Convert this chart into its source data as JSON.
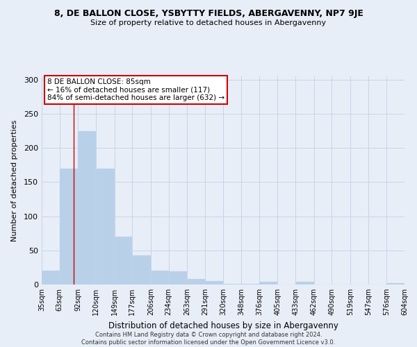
{
  "title": "8, DE BALLON CLOSE, YSBYTTY FIELDS, ABERGAVENNY, NP7 9JE",
  "subtitle": "Size of property relative to detached houses in Abergavenny",
  "xlabel": "Distribution of detached houses by size in Abergavenny",
  "ylabel": "Number of detached properties",
  "footer1": "Contains HM Land Registry data © Crown copyright and database right 2024.",
  "footer2": "Contains public sector information licensed under the Open Government Licence v3.0.",
  "annotation_title": "8 DE BALLON CLOSE: 85sqm",
  "annotation_line2": "← 16% of detached houses are smaller (117)",
  "annotation_line3": "84% of semi-detached houses are larger (632) →",
  "property_size": 85,
  "bar_color": "#b8d0e8",
  "bar_edge_color": "#c8d8ec",
  "grid_color": "#c8d4e8",
  "line_color": "#cc0000",
  "annotation_box_color": "#ffffff",
  "annotation_box_edge": "#cc0000",
  "background_color": "#e8eef8",
  "bins": [
    35,
    63,
    92,
    120,
    149,
    177,
    206,
    234,
    263,
    291,
    320,
    348,
    376,
    405,
    433,
    462,
    490,
    519,
    547,
    576,
    604
  ],
  "counts": [
    20,
    170,
    225,
    170,
    70,
    43,
    20,
    19,
    8,
    5,
    1,
    1,
    4,
    0,
    4,
    0,
    0,
    0,
    0,
    2
  ],
  "ylim": [
    0,
    305
  ],
  "yticks": [
    0,
    50,
    100,
    150,
    200,
    250,
    300
  ]
}
